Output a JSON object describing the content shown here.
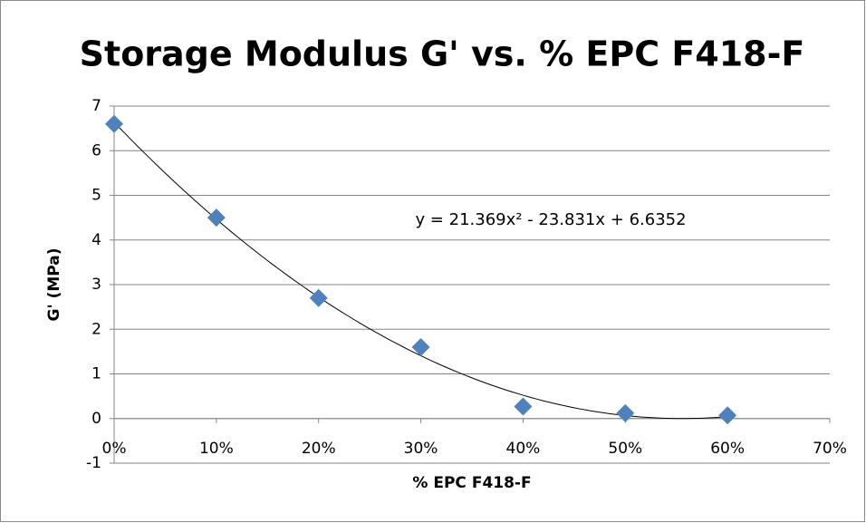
{
  "chart_data": {
    "type": "scatter",
    "title": "Storage Modulus G' vs. % EPC F418-F",
    "x_label": "% EPC F418-F",
    "y_label": "G' (MPa)",
    "annotation": "y = 21.369x² - 23.831x + 6.6352",
    "series": [
      {
        "name": "G'",
        "color": "#4f81bd",
        "x": [
          0,
          10,
          20,
          30,
          40,
          50,
          60
        ],
        "values": [
          6.6,
          4.5,
          2.7,
          1.6,
          0.27,
          0.12,
          0.07
        ]
      }
    ],
    "xlim": [
      0,
      70
    ],
    "xticks": [
      {
        "value": 0,
        "label": "0%"
      },
      {
        "value": 10,
        "label": "10%"
      },
      {
        "value": 20,
        "label": "20%"
      },
      {
        "value": 30,
        "label": "30%"
      },
      {
        "value": 40,
        "label": "40%"
      },
      {
        "value": 50,
        "label": "50%"
      },
      {
        "value": 60,
        "label": "60%"
      },
      {
        "value": 70,
        "label": "70%"
      }
    ],
    "ylim": [
      -1,
      7
    ],
    "yticks": [
      -1,
      0,
      1,
      2,
      3,
      4,
      5,
      6,
      7
    ],
    "grid": true,
    "trendline": "polynomial"
  }
}
